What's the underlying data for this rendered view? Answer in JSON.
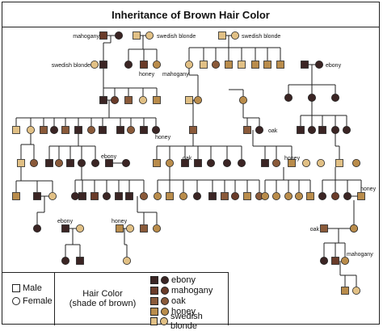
{
  "title": "Inheritance of Brown Hair Color",
  "colors": {
    "ebony": "#3b2524",
    "mahogany": "#6a3c2a",
    "oak": "#8a5a3a",
    "honey": "#b98c4b",
    "swedish_blonde": "#e1c085"
  },
  "labels": {
    "mahogany_top": "mahogany",
    "blonde_top1": "swedish blonde",
    "blonde_top2": "swedish blonde",
    "blonde_left": "swedish blonde",
    "honey_g2": "honey",
    "mahogany_g2": "mahogany",
    "ebony_g2": "ebony",
    "honey_g3": "honey",
    "oak_g3": "oak",
    "ebony_g4": "ebony",
    "oak_g4": "oak",
    "honey_g4": "honey",
    "honey_right": "honey",
    "ebony_g5": "ebony",
    "honey_g5": "honey",
    "oak_g6": "oak",
    "mahogany_g7": "mahogany"
  },
  "legend": {
    "male": "Male",
    "female": "Female",
    "heading_line1": "Hair Color",
    "heading_line2": "(shade of brown)",
    "items": [
      {
        "name": "ebony",
        "color": "#3b2524"
      },
      {
        "name": "mahogany",
        "color": "#6a3c2a"
      },
      {
        "name": "oak",
        "color": "#8a5a3a"
      },
      {
        "name": "honey",
        "color": "#b98c4b"
      },
      {
        "name": "swedish blonde",
        "color": "#e1c085"
      }
    ]
  }
}
